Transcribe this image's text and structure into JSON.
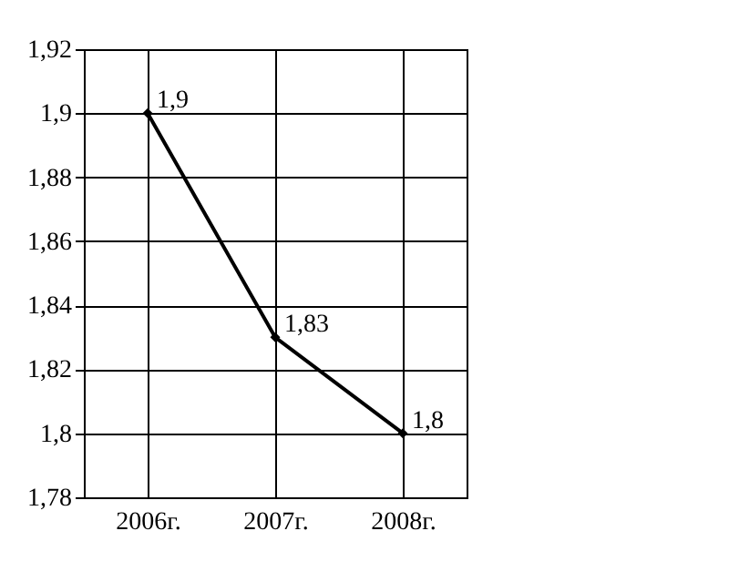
{
  "chart_data": {
    "type": "line",
    "categories": [
      "2006г.",
      "2007г.",
      "2008г."
    ],
    "series": [
      {
        "color": "#000000",
        "values": [
          1.9,
          1.83,
          1.8
        ],
        "value_labels": [
          "1,9",
          "1,83",
          "1,8"
        ]
      }
    ],
    "ylim": [
      1.78,
      1.92
    ],
    "yticks": [
      {
        "value": 1.78,
        "label": "1,78"
      },
      {
        "value": 1.8,
        "label": "1,8"
      },
      {
        "value": 1.82,
        "label": "1,82"
      },
      {
        "value": 1.84,
        "label": "1,84"
      },
      {
        "value": 1.86,
        "label": "1,86"
      },
      {
        "value": 1.88,
        "label": "1,88"
      },
      {
        "value": 1.9,
        "label": "1,9"
      },
      {
        "value": 1.92,
        "label": "1,92"
      }
    ],
    "grid": true,
    "marker": "diamond",
    "line_style": "solid"
  }
}
